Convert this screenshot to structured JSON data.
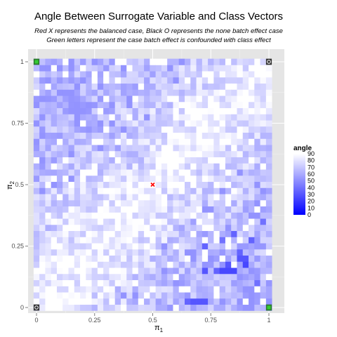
{
  "chart_data": {
    "type": "heatmap",
    "title": "Angle Between Surrogate Variable and Class Vectors",
    "subtitle_lines": [
      "Red X represents the balanced case, Black O represents the none batch effect case",
      "Green letters represent the case batch effect is confounded with class effect"
    ],
    "xlabel": "π1",
    "ylabel": "π2",
    "xlim": [
      0,
      1
    ],
    "ylim": [
      0,
      1
    ],
    "x_ticks": [
      {
        "value": 0,
        "label": "0"
      },
      {
        "value": 0.25,
        "label": "0.25"
      },
      {
        "value": 0.5,
        "label": "0.5"
      },
      {
        "value": 0.75,
        "label": "0.75"
      },
      {
        "value": 1,
        "label": "1"
      }
    ],
    "y_ticks": [
      {
        "value": 0,
        "label": "0"
      },
      {
        "value": 0.25,
        "label": "0.25"
      },
      {
        "value": 0.5,
        "label": "0.5"
      },
      {
        "value": 0.75,
        "label": "0.75"
      },
      {
        "value": 1,
        "label": "1"
      }
    ],
    "grid": true,
    "grid_cells_per_axis": 41,
    "color_scale": {
      "title": "angle",
      "low_value": 0,
      "low_color": "#0000ff",
      "high_value": 90,
      "high_color": "#ffffff",
      "breaks": [
        "90",
        "80",
        "70",
        "60",
        "50",
        "40",
        "30",
        "20",
        "10",
        "0"
      ]
    },
    "legend_position": "right",
    "special_points": [
      {
        "kind": "balanced",
        "marker": "red-x",
        "x": 0.5,
        "y": 0.5,
        "color": "#ff0000"
      },
      {
        "kind": "no-batch-effect",
        "marker": "black-o",
        "x": 0,
        "y": 0,
        "color": "#000000"
      },
      {
        "kind": "no-batch-effect",
        "marker": "black-o",
        "x": 1,
        "y": 1,
        "color": "#000000"
      },
      {
        "kind": "confounded",
        "marker": "green",
        "x": 0,
        "y": 1,
        "color": "#33cc33"
      },
      {
        "kind": "confounded",
        "marker": "green",
        "x": 1,
        "y": 0,
        "color": "#33cc33"
      }
    ],
    "blue_cells": [
      {
        "x": 0.9,
        "y": 0.175,
        "angle": 25
      },
      {
        "x": 0.9,
        "y": 0.2,
        "angle": 30
      },
      {
        "x": 0.875,
        "y": 0.2,
        "angle": 30
      },
      {
        "x": 0.925,
        "y": 0.275,
        "angle": 35
      },
      {
        "x": 0.85,
        "y": 0.3,
        "angle": 35
      },
      {
        "x": 0.8,
        "y": 0.275,
        "angle": 40
      },
      {
        "x": 0.825,
        "y": 0.175,
        "angle": 30
      },
      {
        "x": 0.825,
        "y": 0.15,
        "angle": 25
      },
      {
        "x": 0.8,
        "y": 0.15,
        "angle": 25
      },
      {
        "x": 0.85,
        "y": 0.15,
        "angle": 25
      },
      {
        "x": 0.725,
        "y": 0.25,
        "angle": 35
      },
      {
        "x": 0.725,
        "y": 0.15,
        "angle": 30
      },
      {
        "x": 0.725,
        "y": 0.025,
        "angle": 30
      },
      {
        "x": 0.7,
        "y": 0.025,
        "angle": 30
      },
      {
        "x": 0.675,
        "y": 0.025,
        "angle": 30
      },
      {
        "x": 0.65,
        "y": 0.025,
        "angle": 35
      },
      {
        "x": 0.775,
        "y": 0.15,
        "angle": 35
      },
      {
        "x": 0.875,
        "y": 0.225,
        "angle": 35
      },
      {
        "x": 0.975,
        "y": 0.35,
        "angle": 40
      },
      {
        "x": 0.95,
        "y": 0.1,
        "angle": 40
      }
    ]
  }
}
